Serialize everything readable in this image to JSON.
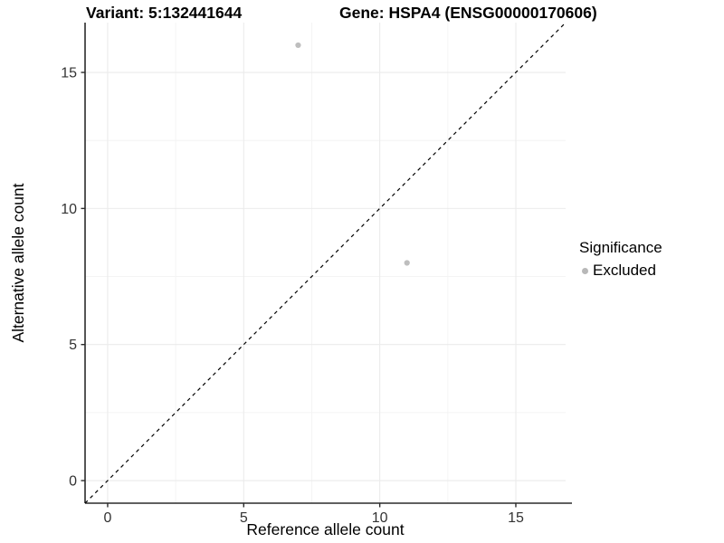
{
  "titles": {
    "variant": "Variant: 5:132441644",
    "gene": "Gene: HSPA4 (ENSG00000170606)"
  },
  "chart_data": {
    "type": "scatter",
    "xlabel": "Reference allele count",
    "ylabel": "Alternative allele count",
    "xlim": [
      -0.83,
      16.83
    ],
    "ylim": [
      -0.83,
      16.83
    ],
    "x_ticks": [
      0,
      5,
      10,
      15
    ],
    "y_ticks": [
      0,
      5,
      10,
      15
    ],
    "x_minor_ticks": [
      2.5,
      7.5,
      12.5
    ],
    "y_minor_ticks": [
      2.5,
      7.5,
      12.5
    ],
    "grid": true,
    "legend_position": "right",
    "series": [
      {
        "name": "Excluded",
        "color": "#bebebe",
        "marker": "circle",
        "points": [
          {
            "x": 7,
            "y": 16
          },
          {
            "x": 11,
            "y": 8
          }
        ]
      }
    ],
    "reference_line": {
      "kind": "identity y = x",
      "style": "dashed",
      "color": "#000000"
    },
    "legend": {
      "title": "Significance",
      "items": [
        {
          "label": "Excluded",
          "color": "#b8b8b8"
        }
      ]
    }
  },
  "colors": {
    "background": "#ffffff",
    "grid_major": "#ebebeb",
    "grid_minor": "#f4f4f4",
    "axis_line": "#2b2b2b",
    "tick_text": "#333333",
    "title_text": "#000000"
  }
}
